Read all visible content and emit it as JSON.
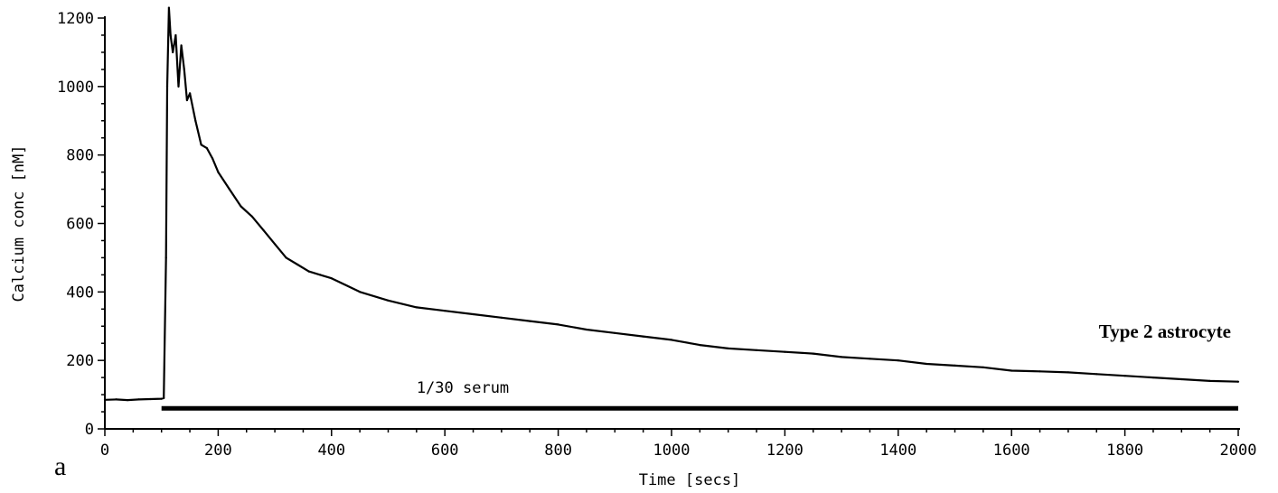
{
  "chart_data": {
    "type": "line",
    "xlabel": "Time [secs]",
    "ylabel": "Calcium conc [nM]",
    "xlim": [
      0,
      2000
    ],
    "ylim": [
      0,
      1200
    ],
    "x_ticks": [
      0,
      200,
      400,
      600,
      800,
      1000,
      1200,
      1400,
      1600,
      1800,
      2000
    ],
    "y_ticks": [
      0,
      200,
      400,
      600,
      800,
      1000,
      1200
    ],
    "grid": false,
    "panel_label": "a",
    "series_label": "Type 2 astrocyte",
    "stimulus_label": "1/30 serum",
    "stimulus_bar": {
      "x_start": 100,
      "x_end": 2000,
      "y": 60
    },
    "series": [
      {
        "x": [
          0,
          20,
          40,
          60,
          80,
          100,
          104,
          108,
          110,
          113,
          116,
          120,
          125,
          130,
          135,
          140,
          145,
          150,
          160,
          170,
          180,
          190,
          200,
          220,
          240,
          260,
          280,
          300,
          320,
          340,
          360,
          380,
          400,
          450,
          500,
          550,
          600,
          650,
          700,
          750,
          800,
          850,
          900,
          950,
          1000,
          1050,
          1100,
          1150,
          1200,
          1250,
          1300,
          1350,
          1400,
          1450,
          1500,
          1550,
          1600,
          1650,
          1700,
          1750,
          1800,
          1850,
          1900,
          1950,
          2000
        ],
        "y": [
          85,
          86,
          84,
          86,
          87,
          88,
          90,
          500,
          1000,
          1230,
          1150,
          1100,
          1150,
          1000,
          1120,
          1050,
          960,
          980,
          900,
          830,
          820,
          790,
          750,
          700,
          650,
          620,
          580,
          540,
          500,
          480,
          460,
          450,
          440,
          400,
          375,
          355,
          345,
          335,
          325,
          315,
          305,
          290,
          280,
          270,
          260,
          245,
          235,
          230,
          225,
          220,
          210,
          205,
          200,
          190,
          185,
          180,
          170,
          168,
          165,
          160,
          155,
          150,
          145,
          140,
          138
        ]
      }
    ]
  }
}
